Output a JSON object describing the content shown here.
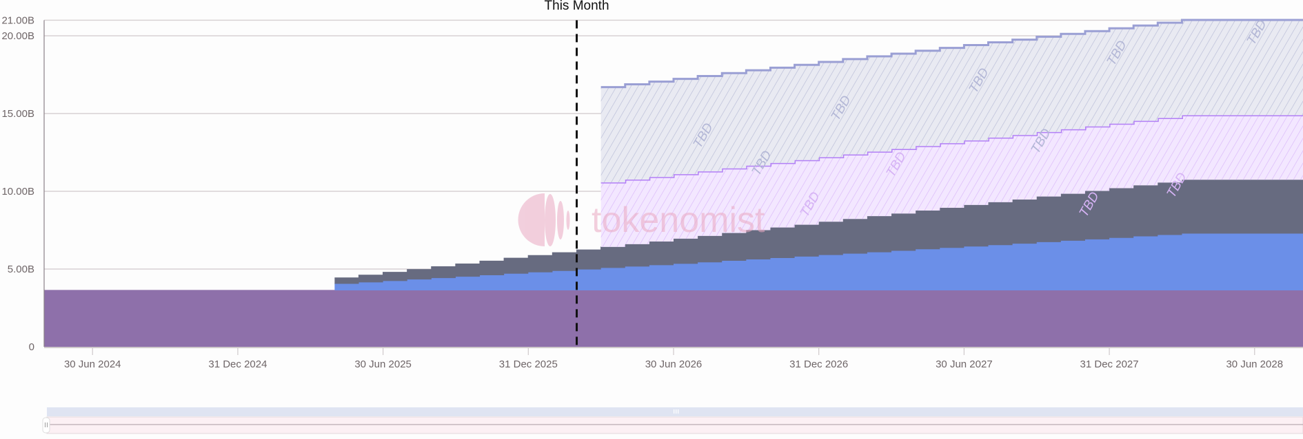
{
  "chart_data": {
    "type": "area",
    "stacked": true,
    "step": true,
    "xlabel": "",
    "ylabel": "",
    "ylim": [
      0,
      21
    ],
    "y_unit": "B",
    "y_ticks": [
      "0",
      "5.00B",
      "10.00B",
      "15.00B",
      "20.00B",
      "21.00B"
    ],
    "y_tick_values": [
      0,
      5,
      10,
      15,
      20,
      21
    ],
    "grid": true,
    "x_ticks": [
      "30 Jun 2024",
      "31 Dec 2024",
      "30 Jun 2025",
      "31 Dec 2025",
      "30 Jun 2026",
      "31 Dec 2026",
      "30 Jun 2027",
      "31 Dec 2027",
      "30 Jun 2028"
    ],
    "x_tick_months": [
      "2024-06",
      "2024-12",
      "2025-06",
      "2025-12",
      "2026-06",
      "2026-12",
      "2027-06",
      "2027-12",
      "2028-06"
    ],
    "x": [
      "2024-05",
      "2024-06",
      "2024-07",
      "2024-08",
      "2024-09",
      "2024-10",
      "2024-11",
      "2024-12",
      "2025-01",
      "2025-02",
      "2025-03",
      "2025-04",
      "2025-05",
      "2025-06",
      "2025-07",
      "2025-08",
      "2025-09",
      "2025-10",
      "2025-11",
      "2025-12",
      "2026-01",
      "2026-02",
      "2026-03",
      "2026-04",
      "2026-05",
      "2026-06",
      "2026-07",
      "2026-08",
      "2026-09",
      "2026-10",
      "2026-11",
      "2026-12",
      "2027-01",
      "2027-02",
      "2027-03",
      "2027-04",
      "2027-05",
      "2027-06",
      "2027-07",
      "2027-08",
      "2027-09",
      "2027-10",
      "2027-11",
      "2027-12",
      "2028-01",
      "2028-02",
      "2028-03",
      "2028-04",
      "2028-05",
      "2028-06",
      "2028-07",
      "2028-08"
    ],
    "annotation": {
      "label": "This Month",
      "month": "2026-03"
    },
    "series": [
      {
        "color": "#8e70aa",
        "line": "#8e70aa",
        "hatched": false,
        "values": [
          3.63,
          3.63,
          3.63,
          3.63,
          3.63,
          3.63,
          3.63,
          3.63,
          3.63,
          3.63,
          3.63,
          3.63,
          3.63,
          3.63,
          3.63,
          3.63,
          3.63,
          3.63,
          3.63,
          3.63,
          3.63,
          3.63,
          3.63,
          3.63,
          3.63,
          3.63,
          3.63,
          3.63,
          3.63,
          3.63,
          3.63,
          3.63,
          3.63,
          3.63,
          3.63,
          3.63,
          3.63,
          3.63,
          3.63,
          3.63,
          3.63,
          3.63,
          3.63,
          3.63,
          3.63,
          3.63,
          3.63,
          3.63,
          3.63,
          3.63,
          3.63,
          3.63
        ]
      },
      {
        "color": "#6b8fe8",
        "line": "#6b8fe8",
        "hatched": false,
        "values": [
          null,
          null,
          null,
          null,
          null,
          null,
          null,
          null,
          null,
          null,
          null,
          null,
          0.42,
          0.51,
          0.6,
          0.7,
          0.79,
          0.88,
          0.97,
          1.07,
          1.16,
          1.25,
          1.34,
          1.44,
          1.53,
          1.62,
          1.71,
          1.8,
          1.9,
          1.99,
          2.08,
          2.17,
          2.27,
          2.36,
          2.45,
          2.54,
          2.64,
          2.73,
          2.82,
          2.91,
          3.0,
          3.1,
          3.19,
          3.28,
          3.37,
          3.47,
          3.56,
          3.65,
          3.65,
          3.65,
          3.65,
          3.65
        ]
      },
      {
        "color": "#676b80",
        "line": "#676b80",
        "hatched": false,
        "values": [
          null,
          null,
          null,
          null,
          null,
          null,
          null,
          null,
          null,
          null,
          null,
          null,
          0.38,
          0.47,
          0.56,
          0.64,
          0.73,
          0.82,
          0.91,
          1.0,
          1.08,
          1.17,
          1.26,
          1.35,
          1.44,
          1.52,
          1.61,
          1.7,
          1.79,
          1.88,
          1.96,
          2.05,
          2.14,
          2.23,
          2.32,
          2.4,
          2.49,
          2.58,
          2.67,
          2.76,
          2.84,
          2.93,
          3.02,
          3.11,
          3.2,
          3.28,
          3.37,
          3.46,
          3.46,
          3.46,
          3.46,
          3.46
        ]
      },
      {
        "color": "#f3e7ff",
        "line": "#b27ff6",
        "hatch": "#d9b8f8",
        "hatched": true,
        "values": [
          null,
          null,
          null,
          null,
          null,
          null,
          null,
          null,
          null,
          null,
          null,
          null,
          null,
          null,
          null,
          null,
          null,
          null,
          null,
          null,
          null,
          null,
          null,
          4.15,
          4.15,
          4.15,
          4.15,
          4.15,
          4.15,
          4.15,
          4.15,
          4.15,
          4.15,
          4.15,
          4.15,
          4.15,
          4.15,
          4.15,
          4.15,
          4.15,
          4.15,
          4.15,
          4.15,
          4.15,
          4.15,
          4.15,
          4.15,
          4.15,
          4.15,
          4.15,
          4.15,
          4.15
        ]
      },
      {
        "color": "#e9eaf2",
        "line": "#9a9fd4",
        "hatch": "#b6b9d6",
        "hatched": true,
        "values": [
          null,
          null,
          null,
          null,
          null,
          null,
          null,
          null,
          null,
          null,
          null,
          null,
          null,
          null,
          null,
          null,
          null,
          null,
          null,
          null,
          null,
          null,
          null,
          6.13,
          6.13,
          6.13,
          6.13,
          6.13,
          6.13,
          6.13,
          6.13,
          6.13,
          6.13,
          6.13,
          6.13,
          6.13,
          6.13,
          6.13,
          6.13,
          6.13,
          6.13,
          6.13,
          6.13,
          6.13,
          6.13,
          6.13,
          6.13,
          6.13,
          6.13,
          6.13,
          6.13,
          6.13
        ]
      }
    ],
    "hatch_label": "TBD"
  },
  "watermark": {
    "text": "tokenomist",
    "color": "#eaa9c2"
  },
  "navigator": {
    "grip_icon": "grip-lines-icon"
  }
}
